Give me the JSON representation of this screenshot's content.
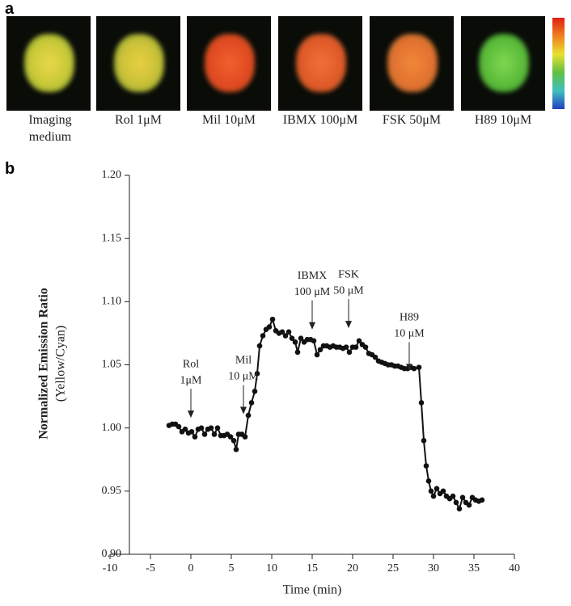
{
  "panel_a": {
    "label": "a",
    "captions": [
      "Imaging medium",
      "Rol 1μM",
      "Mil 10μM",
      "IBMX 100μM",
      "FSK 50μM",
      "H89 10μM"
    ]
  },
  "chart_data": {
    "type": "line",
    "panel_label": "b",
    "ylabel": "Normalized Emission Ratio",
    "ylabel_sub": "(Yellow/Cyan)",
    "xlabel": "Time (min)",
    "xlim": [
      -10,
      40
    ],
    "xticks": [
      -10,
      -5,
      0,
      5,
      10,
      15,
      20,
      25,
      30,
      35,
      40
    ],
    "ylim": [
      0.9,
      1.2
    ],
    "yticks": [
      {
        "value": 0.9,
        "label": "0.90"
      },
      0.95,
      {
        "value": 1.0,
        "label": "1.00"
      },
      1.05,
      {
        "value": 1.1,
        "label": "1.10"
      },
      1.15,
      {
        "value": 1.2,
        "label": "1.20"
      }
    ],
    "color": "#111111",
    "x": [
      -2.7,
      -2.3,
      -1.9,
      -1.5,
      -1.1,
      -0.7,
      -0.3,
      0.1,
      0.5,
      0.9,
      1.3,
      1.7,
      2.1,
      2.5,
      2.9,
      3.3,
      3.7,
      4.1,
      4.5,
      4.9,
      5.3,
      5.6,
      5.9,
      6.3,
      6.7,
      7.1,
      7.5,
      7.9,
      8.2,
      8.5,
      8.9,
      9.3,
      9.7,
      10.1,
      10.5,
      10.9,
      11.3,
      11.7,
      12.1,
      12.5,
      12.9,
      13.2,
      13.6,
      14.0,
      14.4,
      14.8,
      15.2,
      15.6,
      16.0,
      16.4,
      16.8,
      17.2,
      17.6,
      18.0,
      18.4,
      18.8,
      19.2,
      19.6,
      20.0,
      20.4,
      20.8,
      21.2,
      21.6,
      22.0,
      22.4,
      22.8,
      23.2,
      23.6,
      24.0,
      24.4,
      24.8,
      25.2,
      25.6,
      26.0,
      26.4,
      26.8,
      27.2,
      27.6,
      28.2,
      28.5,
      28.8,
      29.1,
      29.4,
      29.7,
      30.0,
      30.4,
      30.8,
      31.2,
      31.6,
      32.0,
      32.4,
      32.8,
      33.2,
      33.6,
      34.0,
      34.4,
      34.8,
      35.2,
      35.6,
      36.0
    ],
    "values": [
      1.002,
      1.003,
      1.003,
      1.001,
      0.997,
      0.999,
      0.996,
      0.997,
      0.993,
      0.999,
      1.0,
      0.995,
      0.999,
      1.0,
      0.995,
      1.0,
      0.994,
      0.994,
      0.995,
      0.993,
      0.99,
      0.983,
      0.995,
      0.995,
      0.993,
      1.01,
      1.02,
      1.029,
      1.043,
      1.065,
      1.073,
      1.078,
      1.08,
      1.086,
      1.077,
      1.075,
      1.076,
      1.073,
      1.076,
      1.071,
      1.068,
      1.06,
      1.071,
      1.068,
      1.07,
      1.07,
      1.069,
      1.058,
      1.062,
      1.065,
      1.065,
      1.064,
      1.065,
      1.064,
      1.064,
      1.063,
      1.064,
      1.06,
      1.064,
      1.064,
      1.069,
      1.066,
      1.064,
      1.059,
      1.058,
      1.056,
      1.053,
      1.052,
      1.051,
      1.05,
      1.05,
      1.049,
      1.049,
      1.048,
      1.047,
      1.047,
      1.048,
      1.047,
      1.048,
      1.02,
      0.99,
      0.97,
      0.958,
      0.95,
      0.946,
      0.952,
      0.948,
      0.95,
      0.946,
      0.944,
      0.946,
      0.941,
      0.936,
      0.945,
      0.941,
      0.939,
      0.945,
      0.943,
      0.942,
      0.943
    ],
    "annotations": [
      {
        "lines": [
          "Rol",
          "1μM"
        ],
        "x": 0,
        "y": 1.008
      },
      {
        "lines": [
          "Mil",
          "10 μM"
        ],
        "x": 6.5,
        "y": 1.011
      },
      {
        "lines": [
          "IBMX",
          "100 μM"
        ],
        "x": 15,
        "y": 1.078
      },
      {
        "lines": [
          "FSK",
          "50 μM"
        ],
        "x": 19.5,
        "y": 1.079
      },
      {
        "lines": [
          "H89",
          "10 μM"
        ],
        "x": 27,
        "y": 1.045
      }
    ]
  }
}
